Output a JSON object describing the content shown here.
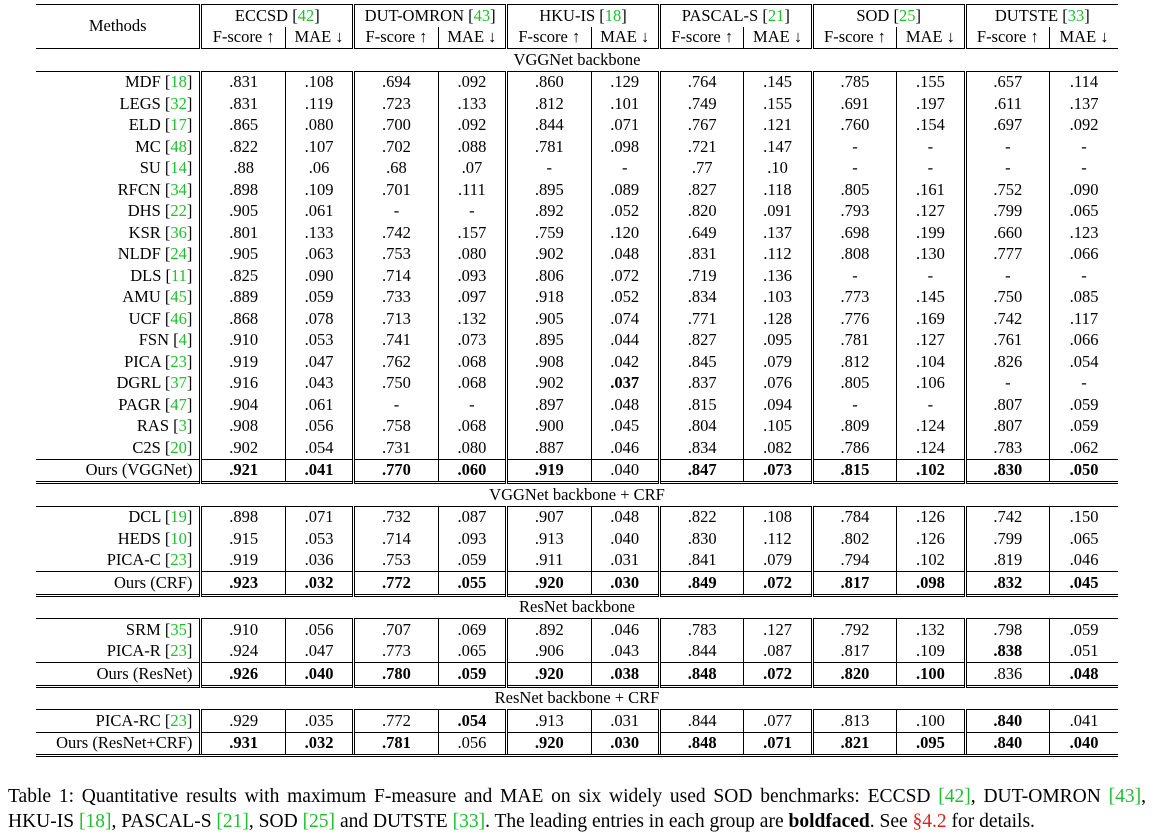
{
  "header": {
    "methods_label": "Methods",
    "datasets": [
      {
        "name": "ECCSD",
        "ref": "42"
      },
      {
        "name": "DUT-OMRON",
        "ref": "43"
      },
      {
        "name": "HKU-IS",
        "ref": "18"
      },
      {
        "name": "PASCAL-S",
        "ref": "21"
      },
      {
        "name": "SOD",
        "ref": "25"
      },
      {
        "name": "DUTSTE",
        "ref": "33"
      }
    ],
    "metric_f": "F-score ↑",
    "metric_mae": "MAE ↓"
  },
  "sections": [
    {
      "title": "VGGNet backbone",
      "rows": [
        {
          "name": "MDF",
          "ref": "18",
          "vals": [
            ".831",
            ".108",
            ".694",
            ".092",
            ".860",
            ".129",
            ".764",
            ".145",
            ".785",
            ".155",
            ".657",
            ".114"
          ],
          "bold": []
        },
        {
          "name": "LEGS",
          "ref": "32",
          "vals": [
            ".831",
            ".119",
            ".723",
            ".133",
            ".812",
            ".101",
            ".749",
            ".155",
            ".691",
            ".197",
            ".611",
            ".137"
          ],
          "bold": []
        },
        {
          "name": "ELD",
          "ref": "17",
          "vals": [
            ".865",
            ".080",
            ".700",
            ".092",
            ".844",
            ".071",
            ".767",
            ".121",
            ".760",
            ".154",
            ".697",
            ".092"
          ],
          "bold": []
        },
        {
          "name": "MC",
          "ref": "48",
          "vals": [
            ".822",
            ".107",
            ".702",
            ".088",
            ".781",
            ".098",
            ".721",
            ".147",
            "-",
            "-",
            "-",
            "-"
          ],
          "bold": []
        },
        {
          "name": "SU",
          "ref": "14",
          "vals": [
            ".88",
            ".06",
            ".68",
            ".07",
            "-",
            "-",
            ".77",
            ".10",
            "-",
            "-",
            "-",
            "-"
          ],
          "bold": []
        },
        {
          "name": "RFCN",
          "ref": "34",
          "vals": [
            ".898",
            ".109",
            ".701",
            ".111",
            ".895",
            ".089",
            ".827",
            ".118",
            ".805",
            ".161",
            ".752",
            ".090"
          ],
          "bold": []
        },
        {
          "name": "DHS",
          "ref": "22",
          "vals": [
            ".905",
            ".061",
            "-",
            "-",
            ".892",
            ".052",
            ".820",
            ".091",
            ".793",
            ".127",
            ".799",
            ".065"
          ],
          "bold": []
        },
        {
          "name": "KSR",
          "ref": "36",
          "vals": [
            ".801",
            ".133",
            ".742",
            ".157",
            ".759",
            ".120",
            ".649",
            ".137",
            ".698",
            ".199",
            ".660",
            ".123"
          ],
          "bold": []
        },
        {
          "name": "NLDF",
          "ref": "24",
          "vals": [
            ".905",
            ".063",
            ".753",
            ".080",
            ".902",
            ".048",
            ".831",
            ".112",
            ".808",
            ".130",
            ".777",
            ".066"
          ],
          "bold": []
        },
        {
          "name": "DLS",
          "ref": "11",
          "vals": [
            ".825",
            ".090",
            ".714",
            ".093",
            ".806",
            ".072",
            ".719",
            ".136",
            "-",
            "-",
            "-",
            "-"
          ],
          "bold": []
        },
        {
          "name": "AMU",
          "ref": "45",
          "vals": [
            ".889",
            ".059",
            ".733",
            ".097",
            ".918",
            ".052",
            ".834",
            ".103",
            ".773",
            ".145",
            ".750",
            ".085"
          ],
          "bold": []
        },
        {
          "name": "UCF",
          "ref": "46",
          "vals": [
            ".868",
            ".078",
            ".713",
            ".132",
            ".905",
            ".074",
            ".771",
            ".128",
            ".776",
            ".169",
            ".742",
            ".117"
          ],
          "bold": []
        },
        {
          "name": "FSN",
          "ref": "4",
          "vals": [
            ".910",
            ".053",
            ".741",
            ".073",
            ".895",
            ".044",
            ".827",
            ".095",
            ".781",
            ".127",
            ".761",
            ".066"
          ],
          "bold": []
        },
        {
          "name": "PICA",
          "ref": "23",
          "vals": [
            ".919",
            ".047",
            ".762",
            ".068",
            ".908",
            ".042",
            ".845",
            ".079",
            ".812",
            ".104",
            ".826",
            ".054"
          ],
          "bold": []
        },
        {
          "name": "DGRL",
          "ref": "37",
          "vals": [
            ".916",
            ".043",
            ".750",
            ".068",
            ".902",
            ".037",
            ".837",
            ".076",
            ".805",
            ".106",
            "-",
            "-"
          ],
          "bold": [
            5
          ]
        },
        {
          "name": "PAGR",
          "ref": "47",
          "vals": [
            ".904",
            ".061",
            "-",
            "-",
            ".897",
            ".048",
            ".815",
            ".094",
            "-",
            "-",
            ".807",
            ".059"
          ],
          "bold": []
        },
        {
          "name": "RAS",
          "ref": "3",
          "vals": [
            ".908",
            ".056",
            ".758",
            ".068",
            ".900",
            ".045",
            ".804",
            ".105",
            ".809",
            ".124",
            ".807",
            ".059"
          ],
          "bold": []
        },
        {
          "name": "C2S",
          "ref": "20",
          "vals": [
            ".902",
            ".054",
            ".731",
            ".080",
            ".887",
            ".046",
            ".834",
            ".082",
            ".786",
            ".124",
            ".783",
            ".062"
          ],
          "bold": []
        },
        {
          "name": "Ours (VGGNet)",
          "ref": "",
          "vals": [
            ".921",
            ".041",
            ".770",
            ".060",
            ".919",
            ".040",
            ".847",
            ".073",
            ".815",
            ".102",
            ".830",
            ".050"
          ],
          "bold": [
            0,
            1,
            2,
            3,
            4,
            6,
            7,
            8,
            9,
            10,
            11
          ]
        }
      ]
    },
    {
      "title": "VGGNet backbone + CRF",
      "rows": [
        {
          "name": "DCL",
          "ref": "19",
          "vals": [
            ".898",
            ".071",
            ".732",
            ".087",
            ".907",
            ".048",
            ".822",
            ".108",
            ".784",
            ".126",
            ".742",
            ".150"
          ],
          "bold": []
        },
        {
          "name": "HEDS",
          "ref": "10",
          "vals": [
            ".915",
            ".053",
            ".714",
            ".093",
            ".913",
            ".040",
            ".830",
            ".112",
            ".802",
            ".126",
            ".799",
            ".065"
          ],
          "bold": []
        },
        {
          "name": "PICA-C",
          "ref": "23",
          "vals": [
            ".919",
            ".036",
            ".753",
            ".059",
            ".911",
            ".031",
            ".841",
            ".079",
            ".794",
            ".102",
            ".819",
            ".046"
          ],
          "bold": []
        },
        {
          "name": "Ours (CRF)",
          "ref": "",
          "vals": [
            ".923",
            ".032",
            ".772",
            ".055",
            ".920",
            ".030",
            ".849",
            ".072",
            ".817",
            ".098",
            ".832",
            ".045"
          ],
          "bold": [
            0,
            1,
            2,
            3,
            4,
            5,
            6,
            7,
            8,
            9,
            10,
            11
          ]
        }
      ]
    },
    {
      "title": "ResNet backbone",
      "rows": [
        {
          "name": "SRM",
          "ref": "35",
          "vals": [
            ".910",
            ".056",
            ".707",
            ".069",
            ".892",
            ".046",
            ".783",
            ".127",
            ".792",
            ".132",
            ".798",
            ".059"
          ],
          "bold": []
        },
        {
          "name": "PICA-R",
          "ref": "23",
          "vals": [
            ".924",
            ".047",
            ".773",
            ".065",
            ".906",
            ".043",
            ".844",
            ".087",
            ".817",
            ".109",
            ".838",
            ".051"
          ],
          "bold": [
            10
          ]
        },
        {
          "name": "Ours (ResNet)",
          "ref": "",
          "vals": [
            ".926",
            ".040",
            ".780",
            ".059",
            ".920",
            ".038",
            ".848",
            ".072",
            ".820",
            ".100",
            ".836",
            ".048"
          ],
          "bold": [
            0,
            1,
            2,
            3,
            4,
            5,
            6,
            7,
            8,
            9,
            11
          ]
        }
      ]
    },
    {
      "title": "ResNet backbone + CRF",
      "rows": [
        {
          "name": "PICA-RC",
          "ref": "23",
          "vals": [
            ".929",
            ".035",
            ".772",
            ".054",
            ".913",
            ".031",
            ".844",
            ".077",
            ".813",
            ".100",
            ".840",
            ".041"
          ],
          "bold": [
            3,
            10
          ]
        },
        {
          "name": "Ours (ResNet+CRF)",
          "ref": "",
          "vals": [
            ".931",
            ".032",
            ".781",
            ".056",
            ".920",
            ".030",
            ".848",
            ".071",
            ".821",
            ".095",
            ".840",
            ".040"
          ],
          "bold": [
            0,
            1,
            2,
            4,
            5,
            6,
            7,
            8,
            9,
            10,
            11
          ]
        }
      ]
    }
  ],
  "caption": {
    "label": "Table 1:",
    "text1": "Quantitative results with maximum F-measure and MAE on six widely used SOD benchmarks: ECCSD",
    "ref_eccsd": "[42]",
    "text2": ", DUT-OMRON",
    "ref_dut": "[43]",
    "text3": ", HKU-IS",
    "ref_hku": "[18]",
    "text4": ", PASCAL-S",
    "ref_pascal": "[21]",
    "text5": ", SOD",
    "ref_sod": "[25]",
    "text6": "and DUTSTE",
    "ref_dutste": "[33]",
    "text7": ". The leading entries in each group are",
    "bold_word": "boldfaced",
    "text8": ". See",
    "section_ref": "§4.2",
    "text9": "for details."
  }
}
